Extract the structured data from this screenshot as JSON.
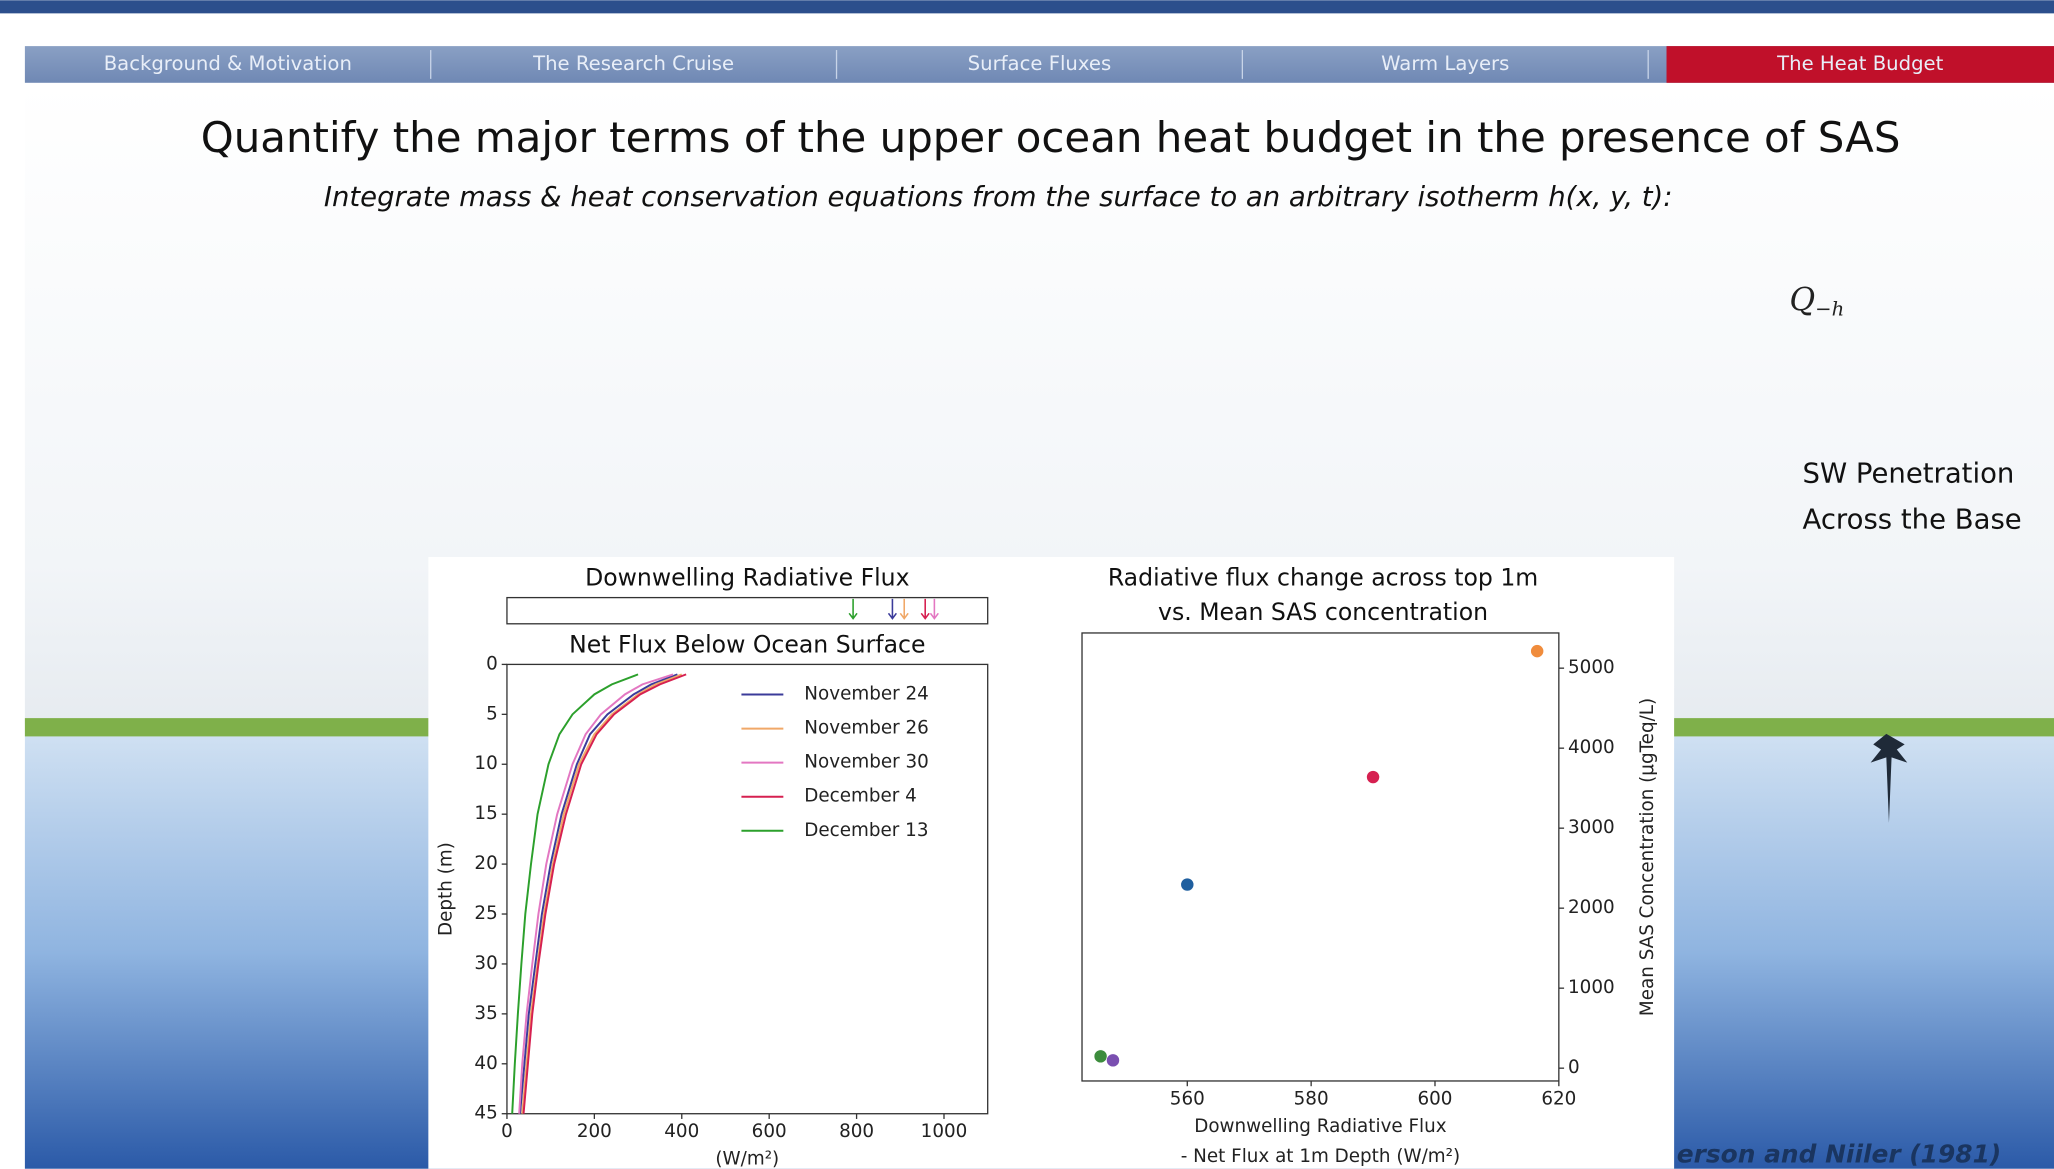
{
  "nav": {
    "tabs": [
      "Background & Motivation",
      "The Research Cruise",
      "Surface Fluxes",
      "Warm Layers",
      "The Heat Budget"
    ],
    "active": 4
  },
  "header": {
    "title": "Quantify the major terms of the upper ocean heat budget in the presence of SAS",
    "subtitle": "Integrate mass & heat conservation equations from the surface to an arbitrary isotherm h(x, y, t):"
  },
  "equation_term": {
    "symbol": "Q",
    "subscript": "−h"
  },
  "side_label": [
    "SW Penetration",
    "Across the Base"
  ],
  "citation": "erson and Niiler (1981)",
  "chart_data": [
    {
      "type": "line",
      "inset_title": "Downwelling Radiative Flux",
      "title": "Net Flux Below Ocean Surface",
      "xlabel": "(W/m²)",
      "ylabel": "Depth (m)",
      "xlim": [
        0,
        1100
      ],
      "xticks": [
        0,
        200,
        400,
        600,
        800,
        1000
      ],
      "ylim": [
        0,
        45
      ],
      "y_inverted": true,
      "yticks": [
        0,
        5,
        10,
        15,
        20,
        25,
        30,
        35,
        40,
        45
      ],
      "series": [
        {
          "name": "November 24",
          "color": "#3b3b9a",
          "downwelling": 882,
          "x": [
            390,
            330,
            290,
            230,
            190,
            160,
            125,
            100,
            80,
            65,
            50,
            40,
            30
          ],
          "values": [
            1,
            2,
            3,
            5,
            7,
            10,
            15,
            20,
            25,
            30,
            35,
            40,
            45
          ]
        },
        {
          "name": "November 26",
          "color": "#f0a868",
          "downwelling": 909,
          "x": [
            400,
            340,
            300,
            240,
            200,
            165,
            130,
            105,
            85,
            70,
            55,
            45,
            35
          ],
          "values": [
            1,
            2,
            3,
            5,
            7,
            10,
            15,
            20,
            25,
            30,
            35,
            40,
            45
          ]
        },
        {
          "name": "November 30",
          "color": "#e377c2",
          "downwelling": 978,
          "x": [
            380,
            310,
            270,
            215,
            180,
            150,
            115,
            90,
            72,
            58,
            45,
            35,
            28
          ],
          "values": [
            1,
            2,
            3,
            5,
            7,
            10,
            15,
            20,
            25,
            30,
            35,
            40,
            45
          ]
        },
        {
          "name": "December 4",
          "color": "#d62050",
          "downwelling": 957,
          "x": [
            410,
            350,
            305,
            245,
            205,
            170,
            135,
            108,
            88,
            72,
            58,
            48,
            38
          ],
          "values": [
            1,
            2,
            3,
            5,
            7,
            10,
            15,
            20,
            25,
            30,
            35,
            40,
            45
          ]
        },
        {
          "name": "December 13",
          "color": "#2ca02c",
          "downwelling": 792,
          "x": [
            300,
            240,
            200,
            150,
            120,
            95,
            70,
            55,
            42,
            33,
            25,
            18,
            12
          ],
          "values": [
            1,
            2,
            3,
            5,
            7,
            10,
            15,
            20,
            25,
            30,
            35,
            40,
            45
          ]
        }
      ]
    },
    {
      "type": "scatter",
      "title": [
        "Radiative flux change across top 1m",
        "vs. Mean SAS concentration"
      ],
      "xlabel": [
        "Downwelling Radiative Flux",
        "- Net Flux at 1m Depth (W/m²)"
      ],
      "ylabel": "Mean SAS Concentration (μgTeq/L)",
      "y_axis_side": "right",
      "xlim": [
        543,
        620
      ],
      "xticks": [
        560,
        580,
        600,
        620
      ],
      "ylim": [
        -160,
        5440
      ],
      "yticks": [
        0,
        1000,
        2000,
        3000,
        4000,
        5000
      ],
      "x": [
        616.5,
        590,
        560,
        546,
        548
      ],
      "values": [
        5213,
        3639,
        2295,
        148,
        98
      ],
      "colors": [
        "#f08c3c",
        "#d62050",
        "#1f5f9f",
        "#3c8c3c",
        "#7a4fb0"
      ]
    }
  ]
}
